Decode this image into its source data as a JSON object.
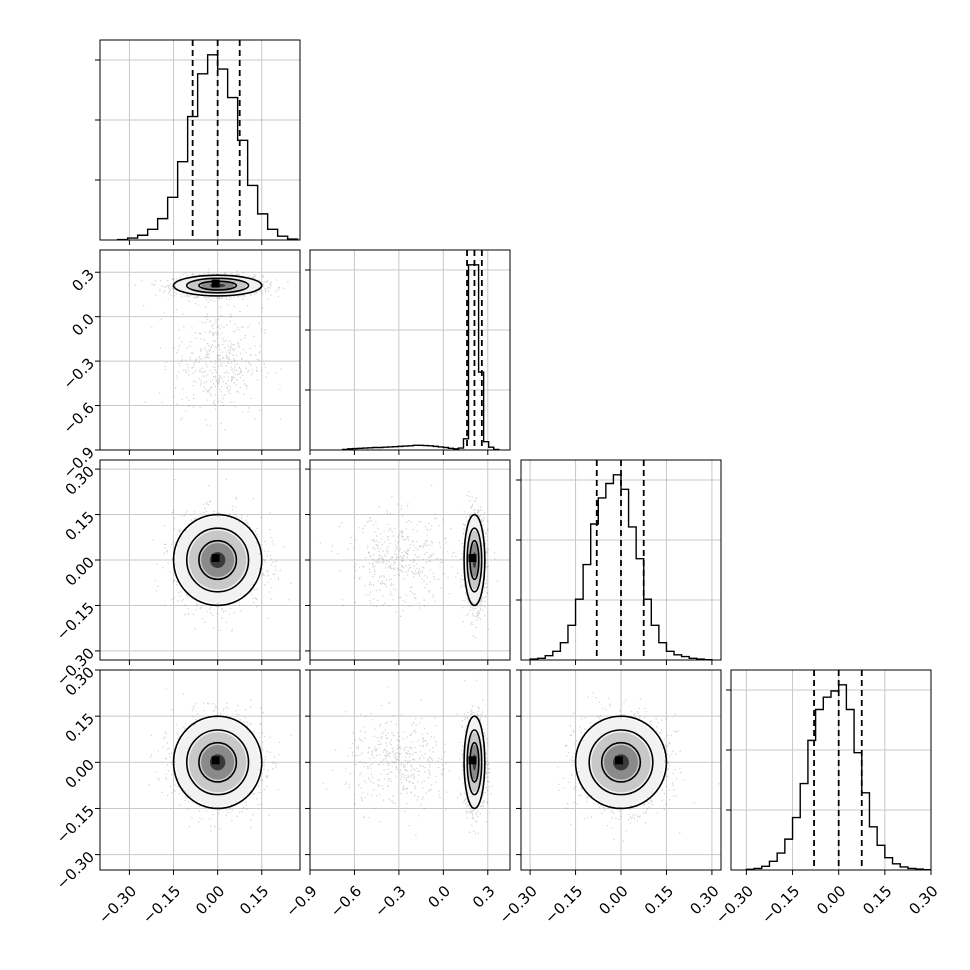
{
  "chart_data": {
    "type": "corner",
    "parameters": 4,
    "axis_ranges": [
      [
        -0.4,
        0.28
      ],
      [
        -0.9,
        0.45
      ],
      [
        -0.33,
        0.33
      ],
      [
        -0.35,
        0.3
      ]
    ],
    "x_ticks": [
      [
        "−0.30",
        "−0.15",
        "0.00",
        "0.15"
      ],
      [
        "−0.9",
        "−0.6",
        "−0.3",
        "0.0",
        "0.3"
      ],
      [
        "−0.30",
        "−0.15",
        "0.00",
        "0.15",
        "0.30"
      ],
      [
        "−0.30",
        "−0.15",
        "0.00",
        "0.15",
        "0.30"
      ]
    ],
    "y_ticks": [
      null,
      [
        "0.3",
        "0.0",
        "−0.3",
        "−0.6",
        "−0.9"
      ],
      [
        "0.30",
        "0.15",
        "0.00",
        "−0.15",
        "−0.30"
      ],
      [
        "0.30",
        "0.15",
        "0.00",
        "−0.15",
        "−0.30"
      ]
    ],
    "grid": true,
    "quantile_lines": [
      [
        -0.085,
        0.0,
        0.075
      ],
      [
        0.16,
        0.21,
        0.26
      ],
      [
        -0.08,
        0.0,
        0.075
      ],
      [
        -0.08,
        0.0,
        0.075
      ]
    ],
    "histograms": [
      {
        "bin_width": 0.034,
        "x": [
          -0.34,
          -0.306,
          -0.272,
          -0.238,
          -0.204,
          -0.17,
          -0.136,
          -0.102,
          -0.068,
          -0.034,
          0.0,
          0.034,
          0.068,
          0.102,
          0.136,
          0.17,
          0.204,
          0.238
        ],
        "values": [
          2,
          8,
          20,
          45,
          90,
          180,
          330,
          520,
          700,
          780,
          720,
          600,
          420,
          230,
          110,
          45,
          16,
          4
        ]
      },
      {
        "bin_width": 0.034,
        "x": [
          -0.68,
          -0.646,
          -0.612,
          -0.578,
          -0.544,
          -0.51,
          -0.476,
          -0.442,
          -0.408,
          -0.374,
          -0.34,
          -0.306,
          -0.272,
          -0.238,
          -0.204,
          -0.17,
          -0.136,
          -0.102,
          -0.068,
          -0.034,
          0.0,
          0.034,
          0.068,
          0.102,
          0.136,
          0.17,
          0.204,
          0.238,
          0.272,
          0.306,
          0.34
        ],
        "values": [
          4,
          8,
          10,
          12,
          14,
          16,
          18,
          18,
          20,
          22,
          24,
          26,
          28,
          30,
          34,
          34,
          32,
          30,
          26,
          22,
          18,
          12,
          8,
          14,
          80,
          1330,
          1330,
          560,
          60,
          20,
          4
        ]
      },
      {
        "bin_width": 0.025,
        "x": [
          -0.3,
          -0.275,
          -0.25,
          -0.225,
          -0.2,
          -0.175,
          -0.15,
          -0.125,
          -0.1,
          -0.075,
          -0.05,
          -0.025,
          0.0,
          0.025,
          0.05,
          0.075,
          0.1,
          0.125,
          0.15,
          0.175,
          0.2,
          0.225,
          0.25,
          0.275
        ],
        "values": [
          3,
          6,
          15,
          30,
          60,
          120,
          210,
          330,
          470,
          560,
          610,
          640,
          590,
          460,
          350,
          210,
          120,
          60,
          30,
          18,
          12,
          6,
          3,
          1
        ]
      },
      {
        "bin_width": 0.025,
        "x": [
          -0.3,
          -0.275,
          -0.25,
          -0.225,
          -0.2,
          -0.175,
          -0.15,
          -0.125,
          -0.1,
          -0.075,
          -0.05,
          -0.025,
          0.0,
          0.025,
          0.05,
          0.075,
          0.1,
          0.125,
          0.15,
          0.175,
          0.2,
          0.225,
          0.25,
          0.275
        ],
        "values": [
          2,
          5,
          12,
          28,
          55,
          100,
          170,
          280,
          420,
          520,
          560,
          580,
          600,
          520,
          380,
          250,
          140,
          80,
          40,
          20,
          10,
          5,
          3,
          1
        ]
      }
    ]
  }
}
